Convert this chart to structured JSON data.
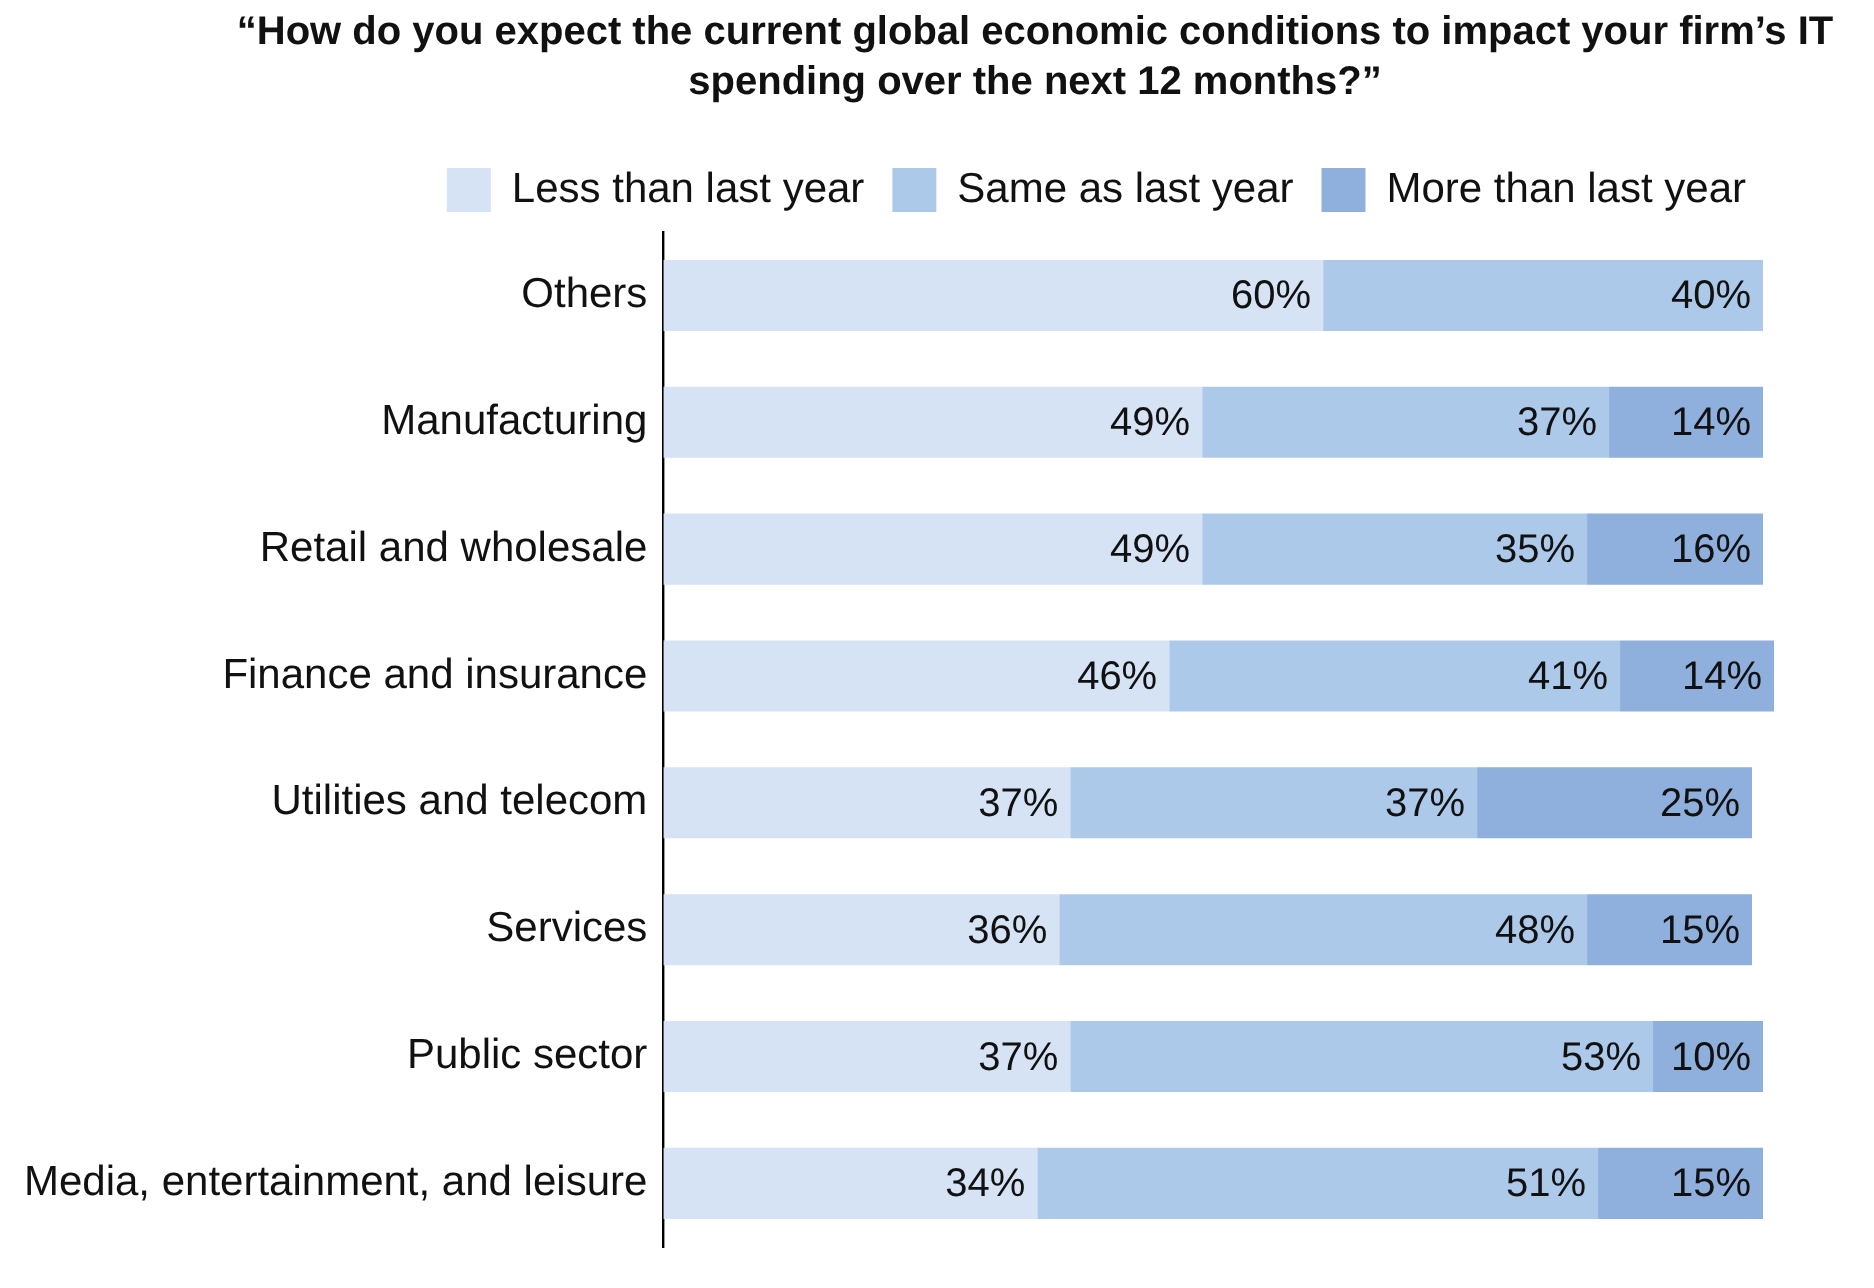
{
  "chart_data": {
    "type": "bar",
    "orientation": "horizontal",
    "stacked": true,
    "legend": "top",
    "grid": false,
    "tick_labels": "y",
    "title": "“How do you expect the current global economic conditions to impact your firm’s IT spending over the next 12 months?”",
    "categories": [
      "Others",
      "Manufacturing",
      "Retail and wholesale",
      "Finance and insurance",
      "Utilities and telecom",
      "Services",
      "Public sector",
      "Media, entertainment, and leisure"
    ],
    "series": [
      {
        "name": "Less than last year",
        "color": "#d5e3f5",
        "values": [
          60,
          49,
          49,
          46,
          37,
          36,
          37,
          34
        ],
        "value_labels": [
          "60%",
          "49%",
          "49%",
          "46%",
          "37%",
          "36%",
          "37%",
          "34%"
        ]
      },
      {
        "name": "Same as last year",
        "color": "#adc9ea",
        "values": [
          40,
          37,
          35,
          41,
          37,
          48,
          53,
          51
        ],
        "value_labels": [
          "40%",
          "37%",
          "35%",
          "41%",
          "37%",
          "48%",
          "53%",
          "51%"
        ]
      },
      {
        "name": "More than last year",
        "color": "#8fafdc",
        "values": [
          null,
          14,
          16,
          14,
          25,
          15,
          10,
          15
        ],
        "value_labels": [
          null,
          "14%",
          "16%",
          "14%",
          "25%",
          "15%",
          "10%",
          "15%"
        ]
      }
    ]
  }
}
